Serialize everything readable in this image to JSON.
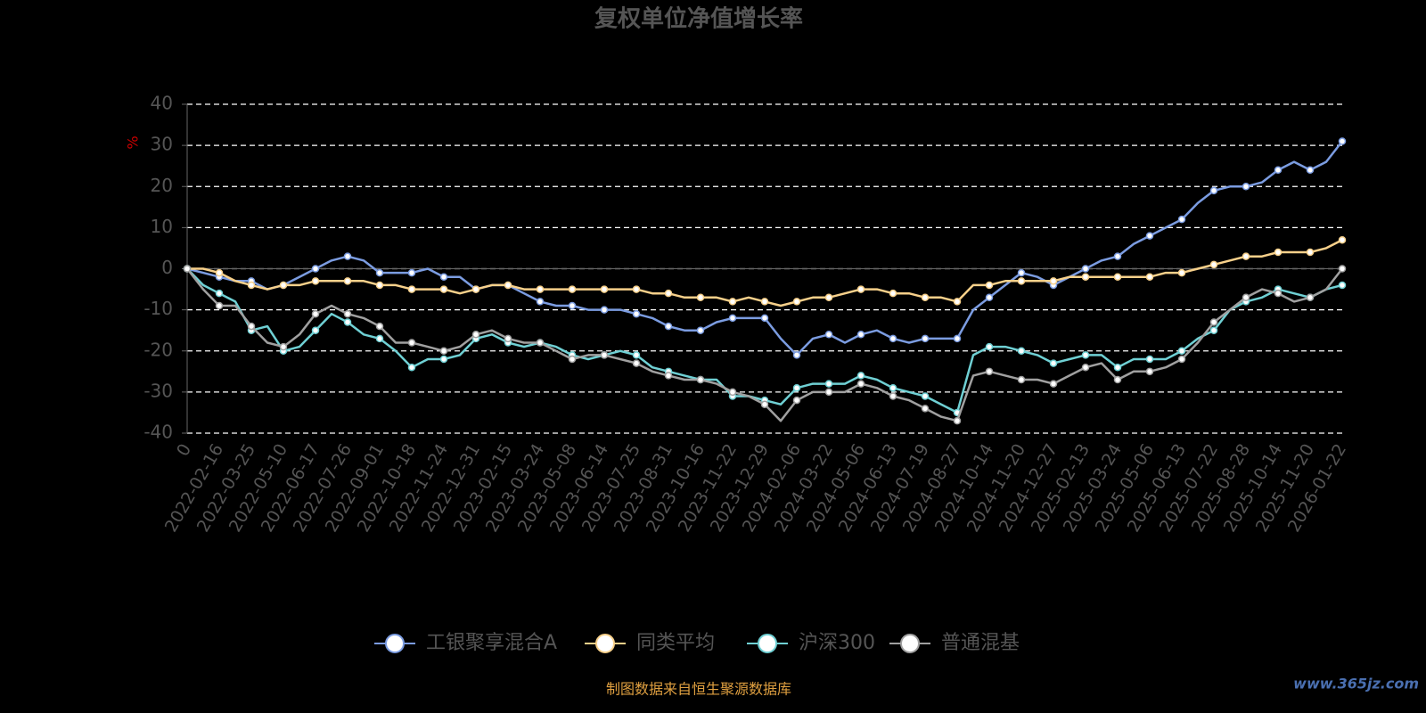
{
  "chart_data": {
    "type": "line",
    "title": "复权单位净值增长率",
    "y_label": "%",
    "categories": [
      "0",
      null,
      "2022-02-16",
      null,
      "2022-03-25",
      null,
      "2022-05-10",
      null,
      "2022-06-17",
      null,
      "2022-07-26",
      null,
      "2022-09-01",
      null,
      "2022-10-18",
      null,
      "2022-11-24",
      null,
      "2022-12-31",
      null,
      "2023-02-15",
      null,
      "2023-03-24",
      null,
      "2023-05-08",
      null,
      "2023-06-14",
      null,
      "2023-07-25",
      null,
      "2023-08-31",
      null,
      "2023-10-16",
      null,
      "2023-11-22",
      null,
      "2023-12-29",
      null,
      "2024-02-06",
      null,
      "2024-03-22",
      null,
      "2024-05-06",
      null,
      "2024-06-13",
      null,
      "2024-07-19",
      null,
      "2024-08-27",
      null,
      "2024-10-14",
      null,
      "2024-11-20",
      null,
      "2024-12-27",
      null,
      "2025-02-13",
      null,
      "2025-03-24",
      null,
      "2025-05-06",
      null,
      "2025-06-13",
      null,
      "2025-07-22",
      null,
      "2025-08-28",
      null,
      "2025-10-14",
      null,
      "2025-11-20",
      null,
      "2026-01-22"
    ],
    "series": [
      {
        "name": "工银聚享混合A",
        "color": "#7b9ce1",
        "values": [
          0,
          -1,
          -2,
          -3,
          -3,
          -5,
          -4,
          -2,
          0,
          2,
          3,
          2,
          -1,
          -1,
          -1,
          0,
          -2,
          -2,
          -5,
          -4,
          -4,
          -6,
          -8,
          -9,
          -9,
          -10,
          -10,
          -10,
          -11,
          -12,
          -14,
          -15,
          -15,
          -13,
          -12,
          -12,
          -12,
          -17,
          -21,
          -17,
          -16,
          -18,
          -16,
          -15,
          -17,
          -18,
          -17,
          -17,
          -17,
          -10,
          -7,
          -4,
          -1,
          -2,
          -4,
          -2,
          0,
          2,
          3,
          6,
          8,
          10,
          12,
          16,
          19,
          20,
          20,
          21,
          24,
          26,
          24,
          26,
          31
        ]
      },
      {
        "name": "同类平均",
        "color": "#f7d08a",
        "values": [
          0,
          0,
          -1,
          -3,
          -4,
          -5,
          -4,
          -4,
          -3,
          -3,
          -3,
          -3,
          -4,
          -4,
          -5,
          -5,
          -5,
          -6,
          -5,
          -4,
          -4,
          -5,
          -5,
          -5,
          -5,
          -5,
          -5,
          -5,
          -5,
          -6,
          -6,
          -7,
          -7,
          -7,
          -8,
          -7,
          -8,
          -9,
          -8,
          -7,
          -7,
          -6,
          -5,
          -5,
          -6,
          -6,
          -7,
          -7,
          -8,
          -4,
          -4,
          -3,
          -3,
          -3,
          -3,
          -2,
          -2,
          -2,
          -2,
          -2,
          -2,
          -1,
          -1,
          0,
          1,
          2,
          3,
          3,
          4,
          4,
          4,
          5,
          7
        ]
      },
      {
        "name": "沪深300",
        "color": "#6fd0d4",
        "values": [
          0,
          -4,
          -6,
          -8,
          -15,
          -14,
          -20,
          -19,
          -15,
          -11,
          -13,
          -16,
          -17,
          -20,
          -24,
          -22,
          -22,
          -21,
          -17,
          -16,
          -18,
          -19,
          -18,
          -19,
          -21,
          -22,
          -21,
          -20,
          -21,
          -24,
          -25,
          -26,
          -27,
          -27,
          -31,
          -31,
          -32,
          -33,
          -29,
          -28,
          -28,
          -28,
          -26,
          -27,
          -29,
          -30,
          -31,
          -33,
          -35,
          -21,
          -19,
          -19,
          -20,
          -21,
          -23,
          -22,
          -21,
          -21,
          -24,
          -22,
          -22,
          -22,
          -20,
          -17,
          -15,
          -10,
          -8,
          -7,
          -5,
          -6,
          -7,
          -5,
          -4
        ]
      },
      {
        "name": "普通混基",
        "color": "#a0a0a0",
        "values": [
          0,
          -5,
          -9,
          -9,
          -14,
          -18,
          -19,
          -16,
          -11,
          -9,
          -11,
          -12,
          -14,
          -18,
          -18,
          -19,
          -20,
          -19,
          -16,
          -15,
          -17,
          -18,
          -18,
          -20,
          -22,
          -21,
          -21,
          -22,
          -23,
          -25,
          -26,
          -27,
          -27,
          -28,
          -30,
          -31,
          -33,
          -37,
          -32,
          -30,
          -30,
          -30,
          -28,
          -29,
          -31,
          -32,
          -34,
          -36,
          -37,
          -26,
          -25,
          -26,
          -27,
          -27,
          -28,
          -26,
          -24,
          -23,
          -27,
          -25,
          -25,
          -24,
          -22,
          -18,
          -13,
          -10,
          -7,
          -5,
          -6,
          -8,
          -7,
          -5,
          0
        ]
      }
    ],
    "ylim": [
      -40,
      40
    ],
    "yticks": [
      -40,
      -30,
      -20,
      -10,
      0,
      10,
      20,
      30,
      40
    ],
    "grid": true,
    "legend": "bottom",
    "source": "制图数据来自恒生聚源数据库",
    "watermark": "www.365jz.com"
  }
}
